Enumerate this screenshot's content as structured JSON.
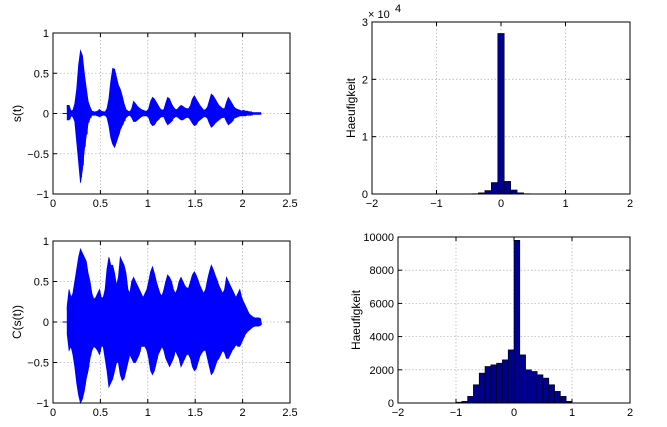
{
  "colors": {
    "signal": "#0000ff",
    "hist_fill": "#00008f",
    "hist_edge": "#000000"
  },
  "chart_data": [
    {
      "type": "line",
      "panel": "top-left",
      "title": "",
      "xlabel": "",
      "ylabel": "s(t)",
      "xlim": [
        0,
        2.5
      ],
      "ylim": [
        -1,
        1
      ],
      "xticks": [
        "0",
        "0.5",
        "1",
        "1.5",
        "2",
        "2.5"
      ],
      "yticks": [
        "1",
        "0.5",
        "0",
        "−0.5",
        "−1"
      ],
      "xtick_values": [
        0,
        0.5,
        1,
        1.5,
        2,
        2.5
      ],
      "ytick_values": [
        1,
        0.5,
        0,
        -0.5,
        -1
      ],
      "grid": true,
      "series": [
        {
          "x": [
            0.15,
            0.17,
            0.19,
            0.21,
            0.23,
            0.25,
            0.27,
            0.29,
            0.31,
            0.33,
            0.35,
            0.37,
            0.39,
            0.41,
            0.43,
            0.45,
            0.47,
            0.49,
            0.51,
            0.53,
            0.55,
            0.57,
            0.59,
            0.61,
            0.63,
            0.65,
            0.67,
            0.69,
            0.71,
            0.73,
            0.75,
            0.77,
            0.79,
            0.81,
            0.83,
            0.85,
            0.87,
            0.89,
            0.91,
            0.93,
            0.95,
            0.97,
            0.99,
            1.01,
            1.03,
            1.05,
            1.07,
            1.09,
            1.11,
            1.13,
            1.15,
            1.17,
            1.19,
            1.21,
            1.23,
            1.25,
            1.27,
            1.29,
            1.31,
            1.33,
            1.35,
            1.37,
            1.39,
            1.41,
            1.43,
            1.45,
            1.47,
            1.49,
            1.51,
            1.53,
            1.55,
            1.57,
            1.59,
            1.61,
            1.63,
            1.65,
            1.67,
            1.69,
            1.71,
            1.73,
            1.75,
            1.77,
            1.79,
            1.81,
            1.83,
            1.85,
            1.87,
            1.89,
            1.91,
            1.93,
            1.95,
            1.97,
            1.99,
            2.01,
            2.03,
            2.05,
            2.07,
            2.09,
            2.11,
            2.13,
            2.15,
            2.17,
            2.19
          ],
          "upper": [
            0.1,
            0.1,
            0.03,
            0.04,
            0.12,
            0.3,
            0.6,
            0.78,
            0.72,
            0.5,
            0.32,
            0.15,
            0.08,
            0.03,
            0.02,
            0.02,
            0.03,
            0.05,
            0.03,
            0.02,
            0.02,
            0.06,
            0.18,
            0.4,
            0.56,
            0.55,
            0.45,
            0.35,
            0.3,
            0.22,
            0.12,
            0.05,
            0.03,
            0.02,
            0.06,
            0.15,
            0.12,
            0.09,
            0.07,
            0.05,
            0.04,
            0.03,
            0.03,
            0.06,
            0.15,
            0.2,
            0.18,
            0.14,
            0.1,
            0.06,
            0.04,
            0.05,
            0.13,
            0.2,
            0.18,
            0.12,
            0.08,
            0.05,
            0.05,
            0.08,
            0.1,
            0.09,
            0.07,
            0.06,
            0.06,
            0.1,
            0.18,
            0.22,
            0.18,
            0.14,
            0.1,
            0.07,
            0.04,
            0.05,
            0.08,
            0.16,
            0.24,
            0.22,
            0.18,
            0.14,
            0.1,
            0.08,
            0.06,
            0.06,
            0.14,
            0.2,
            0.16,
            0.12,
            0.08,
            0.06,
            0.05,
            0.04,
            0.03,
            0.04,
            0.03,
            0.03,
            0.02,
            0.02,
            0.01,
            0.01,
            0.01,
            0.01,
            0.01
          ],
          "lower": [
            -0.08,
            -0.08,
            -0.03,
            -0.04,
            -0.1,
            -0.35,
            -0.6,
            -0.86,
            -0.7,
            -0.45,
            -0.28,
            -0.12,
            -0.06,
            -0.02,
            -0.02,
            -0.02,
            -0.03,
            -0.04,
            -0.03,
            -0.02,
            -0.02,
            -0.05,
            -0.15,
            -0.3,
            -0.38,
            -0.42,
            -0.35,
            -0.28,
            -0.2,
            -0.15,
            -0.1,
            -0.05,
            -0.03,
            -0.02,
            -0.05,
            -0.1,
            -0.1,
            -0.08,
            -0.06,
            -0.04,
            -0.03,
            -0.03,
            -0.03,
            -0.05,
            -0.12,
            -0.15,
            -0.14,
            -0.1,
            -0.08,
            -0.05,
            -0.04,
            -0.04,
            -0.1,
            -0.14,
            -0.12,
            -0.1,
            -0.06,
            -0.04,
            -0.04,
            -0.06,
            -0.08,
            -0.08,
            -0.06,
            -0.05,
            -0.05,
            -0.08,
            -0.12,
            -0.15,
            -0.14,
            -0.1,
            -0.08,
            -0.06,
            -0.04,
            -0.04,
            -0.06,
            -0.12,
            -0.17,
            -0.15,
            -0.12,
            -0.1,
            -0.08,
            -0.06,
            -0.05,
            -0.05,
            -0.1,
            -0.14,
            -0.12,
            -0.1,
            -0.06,
            -0.05,
            -0.04,
            -0.03,
            -0.03,
            -0.03,
            -0.03,
            -0.02,
            -0.02,
            -0.02,
            -0.01,
            -0.01,
            -0.01,
            -0.01,
            -0.01
          ]
        }
      ]
    },
    {
      "type": "bar",
      "panel": "top-right",
      "title": "",
      "xlabel": "",
      "ylabel": "Haeufigkeit",
      "xlim": [
        -2,
        2
      ],
      "ylim": [
        0,
        3
      ],
      "y_exponent": "4",
      "xticks": [
        "−2",
        "−1",
        "0",
        "1",
        "2"
      ],
      "yticks": [
        "3",
        "2",
        "1",
        "0"
      ],
      "xtick_values": [
        -2,
        -1,
        0,
        1,
        2
      ],
      "ytick_values": [
        3,
        2,
        1,
        0
      ],
      "grid": true,
      "bin_width": 0.1,
      "bin_centers": [
        -0.4,
        -0.3,
        -0.2,
        -0.1,
        0,
        0.1,
        0.2,
        0.3,
        0.4
      ],
      "values": [
        0.005,
        0.02,
        0.06,
        0.2,
        2.8,
        0.22,
        0.07,
        0.02,
        0.005
      ]
    },
    {
      "type": "line",
      "panel": "bottom-left",
      "title": "",
      "xlabel": "",
      "ylabel": "C(s(t))",
      "xlim": [
        0,
        2.5
      ],
      "ylim": [
        -1,
        1
      ],
      "xticks": [
        "0",
        "0.5",
        "1",
        "1.5",
        "2",
        "2.5"
      ],
      "yticks": [
        "1",
        "0.5",
        "0",
        "−0.5",
        "−1"
      ],
      "xtick_values": [
        0,
        0.5,
        1,
        1.5,
        2,
        2.5
      ],
      "ytick_values": [
        1,
        0.5,
        0,
        -0.5,
        -1
      ],
      "grid": true,
      "series": [
        {
          "x": [
            0.15,
            0.17,
            0.19,
            0.21,
            0.23,
            0.25,
            0.27,
            0.29,
            0.31,
            0.33,
            0.35,
            0.37,
            0.39,
            0.41,
            0.43,
            0.45,
            0.47,
            0.49,
            0.51,
            0.53,
            0.55,
            0.57,
            0.59,
            0.61,
            0.63,
            0.65,
            0.67,
            0.69,
            0.71,
            0.73,
            0.75,
            0.77,
            0.79,
            0.81,
            0.83,
            0.85,
            0.87,
            0.89,
            0.91,
            0.93,
            0.95,
            0.97,
            0.99,
            1.01,
            1.03,
            1.05,
            1.07,
            1.09,
            1.11,
            1.13,
            1.15,
            1.17,
            1.19,
            1.21,
            1.23,
            1.25,
            1.27,
            1.29,
            1.31,
            1.33,
            1.35,
            1.37,
            1.39,
            1.41,
            1.43,
            1.45,
            1.47,
            1.49,
            1.51,
            1.53,
            1.55,
            1.57,
            1.59,
            1.61,
            1.63,
            1.65,
            1.67,
            1.69,
            1.71,
            1.73,
            1.75,
            1.77,
            1.79,
            1.81,
            1.83,
            1.85,
            1.87,
            1.89,
            1.91,
            1.93,
            1.95,
            1.97,
            1.99,
            2.01,
            2.03,
            2.05,
            2.07,
            2.09,
            2.11,
            2.13,
            2.15,
            2.17,
            2.19
          ],
          "upper": [
            0.2,
            0.4,
            0.3,
            0.35,
            0.5,
            0.65,
            0.8,
            0.9,
            0.85,
            0.8,
            0.75,
            0.6,
            0.5,
            0.35,
            0.28,
            0.3,
            0.35,
            0.4,
            0.3,
            0.3,
            0.4,
            0.65,
            0.8,
            0.7,
            0.7,
            0.6,
            0.45,
            0.55,
            0.8,
            0.75,
            0.7,
            0.6,
            0.4,
            0.35,
            0.5,
            0.55,
            0.5,
            0.45,
            0.4,
            0.35,
            0.3,
            0.35,
            0.4,
            0.5,
            0.62,
            0.68,
            0.6,
            0.5,
            0.42,
            0.35,
            0.32,
            0.4,
            0.5,
            0.58,
            0.55,
            0.5,
            0.4,
            0.35,
            0.4,
            0.5,
            0.55,
            0.5,
            0.45,
            0.42,
            0.42,
            0.5,
            0.58,
            0.62,
            0.58,
            0.52,
            0.45,
            0.4,
            0.35,
            0.4,
            0.52,
            0.62,
            0.7,
            0.65,
            0.58,
            0.52,
            0.45,
            0.4,
            0.35,
            0.4,
            0.55,
            0.5,
            0.45,
            0.4,
            0.35,
            0.3,
            0.35,
            0.4,
            0.3,
            0.25,
            0.2,
            0.15,
            0.1,
            0.08,
            0.06,
            0.05,
            0.05,
            0.05,
            0.04
          ],
          "lower": [
            -0.15,
            -0.35,
            -0.3,
            -0.4,
            -0.55,
            -0.75,
            -0.9,
            -1.0,
            -0.95,
            -0.85,
            -0.7,
            -0.6,
            -0.45,
            -0.35,
            -0.3,
            -0.32,
            -0.35,
            -0.4,
            -0.3,
            -0.3,
            -0.45,
            -0.6,
            -0.8,
            -0.75,
            -0.7,
            -0.6,
            -0.5,
            -0.5,
            -0.65,
            -0.72,
            -0.7,
            -0.6,
            -0.5,
            -0.4,
            -0.45,
            -0.5,
            -0.5,
            -0.45,
            -0.4,
            -0.3,
            -0.3,
            -0.3,
            -0.35,
            -0.45,
            -0.6,
            -0.65,
            -0.6,
            -0.5,
            -0.4,
            -0.35,
            -0.3,
            -0.35,
            -0.45,
            -0.5,
            -0.55,
            -0.5,
            -0.45,
            -0.35,
            -0.4,
            -0.45,
            -0.55,
            -0.5,
            -0.45,
            -0.4,
            -0.4,
            -0.45,
            -0.55,
            -0.6,
            -0.58,
            -0.5,
            -0.42,
            -0.38,
            -0.35,
            -0.35,
            -0.45,
            -0.55,
            -0.65,
            -0.62,
            -0.55,
            -0.48,
            -0.45,
            -0.4,
            -0.35,
            -0.38,
            -0.45,
            -0.45,
            -0.4,
            -0.35,
            -0.32,
            -0.28,
            -0.3,
            -0.3,
            -0.25,
            -0.2,
            -0.15,
            -0.12,
            -0.1,
            -0.08,
            -0.06,
            -0.05,
            -0.05,
            -0.05,
            -0.04
          ]
        }
      ]
    },
    {
      "type": "bar",
      "panel": "bottom-right",
      "title": "",
      "xlabel": "",
      "ylabel": "Haeufigkeit",
      "xlim": [
        -2,
        2
      ],
      "ylim": [
        0,
        10000
      ],
      "xticks": [
        "−2",
        "−1",
        "0",
        "1",
        "2"
      ],
      "yticks": [
        "10000",
        "8000",
        "6000",
        "4000",
        "2000",
        "0"
      ],
      "xtick_values": [
        -2,
        -1,
        0,
        1,
        2
      ],
      "ytick_values": [
        10000,
        8000,
        6000,
        4000,
        2000,
        0
      ],
      "grid": true,
      "bin_width": 0.1,
      "bin_centers": [
        -0.95,
        -0.85,
        -0.75,
        -0.65,
        -0.55,
        -0.45,
        -0.35,
        -0.25,
        -0.15,
        -0.05,
        0.05,
        0.15,
        0.25,
        0.35,
        0.45,
        0.55,
        0.65,
        0.75,
        0.85,
        0.95
      ],
      "values": [
        50,
        100,
        400,
        1100,
        1800,
        2200,
        2300,
        2400,
        2600,
        3200,
        9800,
        2900,
        2000,
        1900,
        1700,
        1500,
        1100,
        700,
        400,
        100
      ]
    }
  ]
}
